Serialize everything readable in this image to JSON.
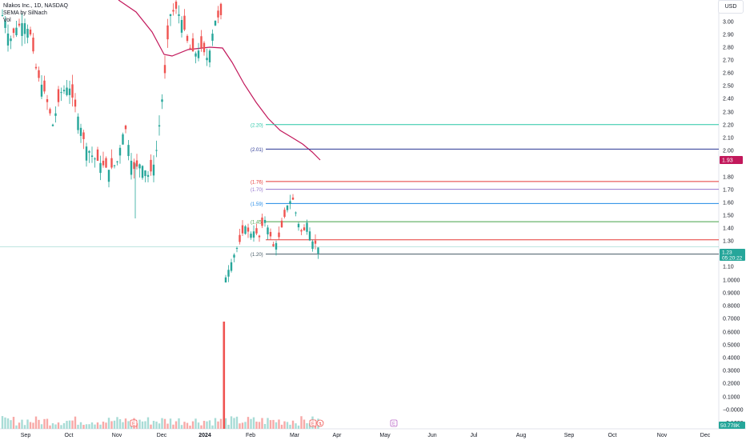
{
  "legend": {
    "symbol_line": "Nlakos Inc., 1D, NASDAQ",
    "indicator_line": "SEMA by SilNach",
    "volume_line": "Vol"
  },
  "currency_button": "USD",
  "chart_data": {
    "type": "candlestick",
    "price_axis": {
      "ticks": [
        "3.00",
        "2.90",
        "2.80",
        "2.70",
        "2.60",
        "2.50",
        "2.40",
        "2.30",
        "2.20",
        "2.10",
        "2.00",
        "1.80",
        "1.70",
        "1.60",
        "1.50",
        "1.40",
        "1.30",
        "1.10",
        "1.0000",
        "0.9000",
        "0.8000",
        "0.7000",
        "0.6000",
        "0.5000",
        "0.4000",
        "0.3000",
        "0.2000",
        "0.1000",
        "−0.0000"
      ],
      "top_tick_cut": "−0.1000",
      "scale": "log"
    },
    "time_axis": {
      "ticks": [
        "Sep",
        "Oct",
        "Nov",
        "Dec",
        "2024",
        "Feb",
        "Mar",
        "Apr",
        "May",
        "Jun",
        "Jul",
        "Aug",
        "Sep",
        "Oct",
        "Nov",
        "Dec"
      ]
    },
    "price_labels": {
      "sema_value": "1.93",
      "last_price": "1.23",
      "countdown": "05:20:22",
      "volume": "50.778K"
    },
    "colors": {
      "up": "#26a69a",
      "down": "#ef5350",
      "sema": "#c2185b",
      "volume_up": "#a8dcd6",
      "volume_down": "#f7a9a7",
      "crosshair": "#9aa0a6"
    },
    "levels": [
      {
        "label": "(2.20)",
        "price": 2.2,
        "color": "#26c6a6"
      },
      {
        "label": "(2.01)",
        "price": 2.01,
        "color": "#283593"
      },
      {
        "label": "(1.76)",
        "price": 1.76,
        "color": "#e53935"
      },
      {
        "label": "(1.70)",
        "price": 1.7,
        "color": "#9575cd"
      },
      {
        "label": "(1.59)",
        "price": 1.59,
        "color": "#1e88e5"
      },
      {
        "label": "(1.45)",
        "price": 1.45,
        "color": "#43a047"
      },
      {
        "label": "",
        "price": 1.31,
        "color": "#e53935"
      },
      {
        "label": "(1.20)",
        "price": 1.2,
        "color": "#455a64"
      }
    ],
    "earnings_markers": [
      "E",
      "E",
      "E"
    ],
    "dividend_marker": "↯"
  }
}
